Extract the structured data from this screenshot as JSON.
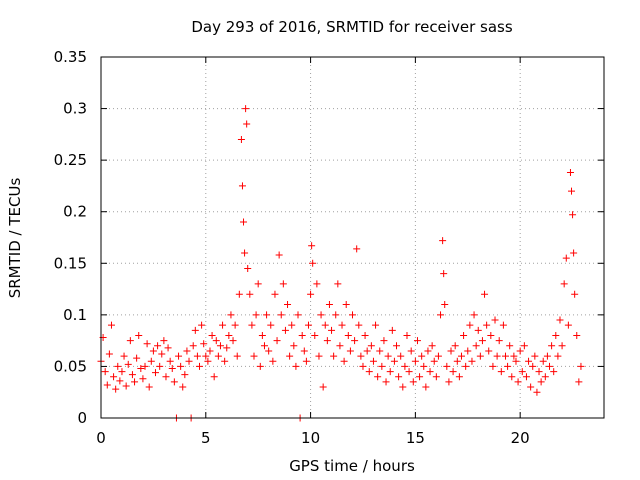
{
  "chart_data": {
    "type": "scatter",
    "title": "Day 293 of 2016, SRMTID for receiver sass",
    "xlabel": "GPS time / hours",
    "ylabel": "SRMTID / TECUs",
    "xlim": [
      0,
      24
    ],
    "ylim": [
      0,
      0.35
    ],
    "xticks": [
      0,
      5,
      10,
      15,
      20
    ],
    "xtick_labels": [
      "0",
      "5",
      "10",
      "15",
      "20"
    ],
    "yticks": [
      0,
      0.05,
      0.1,
      0.15,
      0.2,
      0.25,
      0.3,
      0.35
    ],
    "ytick_labels": [
      "0",
      "0.05",
      "0.1",
      "0.15",
      "0.2",
      "0.25",
      "0.3",
      "0.35"
    ],
    "grid": true,
    "marker": "+",
    "series": [
      {
        "name": "SRMTID",
        "color": "#ff0000",
        "points": [
          [
            0.0,
            0.055
          ],
          [
            0.1,
            0.078
          ],
          [
            0.2,
            0.045
          ],
          [
            0.3,
            0.032
          ],
          [
            0.4,
            0.062
          ],
          [
            0.5,
            0.09
          ],
          [
            0.6,
            0.04
          ],
          [
            0.7,
            0.028
          ],
          [
            0.8,
            0.05
          ],
          [
            0.9,
            0.036
          ],
          [
            1.0,
            0.045
          ],
          [
            1.1,
            0.06
          ],
          [
            1.2,
            0.031
          ],
          [
            1.3,
            0.052
          ],
          [
            1.4,
            0.075
          ],
          [
            1.5,
            0.042
          ],
          [
            1.6,
            0.035
          ],
          [
            1.7,
            0.058
          ],
          [
            1.8,
            0.08
          ],
          [
            1.9,
            0.048
          ],
          [
            2.0,
            0.038
          ],
          [
            2.1,
            0.05
          ],
          [
            2.2,
            0.072
          ],
          [
            2.3,
            0.03
          ],
          [
            2.4,
            0.055
          ],
          [
            2.5,
            0.065
          ],
          [
            2.6,
            0.044
          ],
          [
            2.7,
            0.07
          ],
          [
            2.8,
            0.05
          ],
          [
            2.9,
            0.062
          ],
          [
            3.0,
            0.075
          ],
          [
            3.1,
            0.04
          ],
          [
            3.2,
            0.068
          ],
          [
            3.3,
            0.055
          ],
          [
            3.4,
            0.048
          ],
          [
            3.5,
            0.035
          ],
          [
            3.6,
            0.0
          ],
          [
            3.7,
            0.06
          ],
          [
            3.8,
            0.05
          ],
          [
            3.9,
            0.03
          ],
          [
            4.0,
            0.042
          ],
          [
            4.1,
            0.065
          ],
          [
            4.2,
            0.055
          ],
          [
            4.3,
            0.0
          ],
          [
            4.4,
            0.07
          ],
          [
            4.5,
            0.085
          ],
          [
            4.6,
            0.06
          ],
          [
            4.7,
            0.05
          ],
          [
            4.8,
            0.09
          ],
          [
            4.9,
            0.072
          ],
          [
            5.0,
            0.06
          ],
          [
            5.1,
            0.055
          ],
          [
            5.2,
            0.065
          ],
          [
            5.3,
            0.08
          ],
          [
            5.4,
            0.04
          ],
          [
            5.5,
            0.075
          ],
          [
            5.6,
            0.06
          ],
          [
            5.7,
            0.07
          ],
          [
            5.8,
            0.09
          ],
          [
            5.9,
            0.055
          ],
          [
            6.0,
            0.068
          ],
          [
            6.1,
            0.08
          ],
          [
            6.2,
            0.1
          ],
          [
            6.3,
            0.075
          ],
          [
            6.4,
            0.09
          ],
          [
            6.5,
            0.06
          ],
          [
            6.6,
            0.12
          ],
          [
            6.7,
            0.27
          ],
          [
            6.75,
            0.225
          ],
          [
            6.8,
            0.19
          ],
          [
            6.85,
            0.16
          ],
          [
            6.9,
            0.3
          ],
          [
            6.95,
            0.285
          ],
          [
            7.0,
            0.145
          ],
          [
            7.1,
            0.12
          ],
          [
            7.2,
            0.09
          ],
          [
            7.3,
            0.06
          ],
          [
            7.4,
            0.1
          ],
          [
            7.5,
            0.13
          ],
          [
            7.6,
            0.05
          ],
          [
            7.7,
            0.08
          ],
          [
            7.8,
            0.07
          ],
          [
            7.9,
            0.1
          ],
          [
            8.0,
            0.065
          ],
          [
            8.1,
            0.09
          ],
          [
            8.2,
            0.055
          ],
          [
            8.3,
            0.12
          ],
          [
            8.4,
            0.075
          ],
          [
            8.5,
            0.158
          ],
          [
            8.6,
            0.1
          ],
          [
            8.7,
            0.13
          ],
          [
            8.8,
            0.085
          ],
          [
            8.9,
            0.11
          ],
          [
            9.0,
            0.06
          ],
          [
            9.1,
            0.09
          ],
          [
            9.2,
            0.07
          ],
          [
            9.3,
            0.05
          ],
          [
            9.4,
            0.1
          ],
          [
            9.5,
            0.0
          ],
          [
            9.6,
            0.08
          ],
          [
            9.7,
            0.065
          ],
          [
            9.8,
            0.055
          ],
          [
            9.9,
            0.09
          ],
          [
            10.0,
            0.12
          ],
          [
            10.05,
            0.167
          ],
          [
            10.1,
            0.15
          ],
          [
            10.2,
            0.08
          ],
          [
            10.3,
            0.13
          ],
          [
            10.4,
            0.06
          ],
          [
            10.5,
            0.1
          ],
          [
            10.6,
            0.03
          ],
          [
            10.7,
            0.09
          ],
          [
            10.8,
            0.075
          ],
          [
            10.9,
            0.11
          ],
          [
            11.0,
            0.085
          ],
          [
            11.1,
            0.06
          ],
          [
            11.2,
            0.1
          ],
          [
            11.3,
            0.13
          ],
          [
            11.4,
            0.07
          ],
          [
            11.5,
            0.09
          ],
          [
            11.6,
            0.055
          ],
          [
            11.7,
            0.11
          ],
          [
            11.8,
            0.08
          ],
          [
            11.9,
            0.065
          ],
          [
            12.0,
            0.1
          ],
          [
            12.1,
            0.075
          ],
          [
            12.2,
            0.164
          ],
          [
            12.3,
            0.09
          ],
          [
            12.4,
            0.06
          ],
          [
            12.5,
            0.05
          ],
          [
            12.6,
            0.08
          ],
          [
            12.7,
            0.065
          ],
          [
            12.8,
            0.045
          ],
          [
            12.9,
            0.07
          ],
          [
            13.0,
            0.055
          ],
          [
            13.1,
            0.09
          ],
          [
            13.2,
            0.04
          ],
          [
            13.3,
            0.065
          ],
          [
            13.4,
            0.05
          ],
          [
            13.5,
            0.075
          ],
          [
            13.6,
            0.035
          ],
          [
            13.7,
            0.06
          ],
          [
            13.8,
            0.045
          ],
          [
            13.9,
            0.085
          ],
          [
            14.0,
            0.055
          ],
          [
            14.1,
            0.07
          ],
          [
            14.2,
            0.04
          ],
          [
            14.3,
            0.06
          ],
          [
            14.4,
            0.03
          ],
          [
            14.5,
            0.05
          ],
          [
            14.6,
            0.08
          ],
          [
            14.7,
            0.045
          ],
          [
            14.8,
            0.065
          ],
          [
            14.9,
            0.035
          ],
          [
            15.0,
            0.055
          ],
          [
            15.1,
            0.075
          ],
          [
            15.2,
            0.04
          ],
          [
            15.3,
            0.06
          ],
          [
            15.4,
            0.05
          ],
          [
            15.5,
            0.03
          ],
          [
            15.6,
            0.065
          ],
          [
            15.7,
            0.045
          ],
          [
            15.8,
            0.07
          ],
          [
            15.9,
            0.055
          ],
          [
            16.0,
            0.04
          ],
          [
            16.1,
            0.06
          ],
          [
            16.2,
            0.1
          ],
          [
            16.3,
            0.172
          ],
          [
            16.35,
            0.14
          ],
          [
            16.4,
            0.11
          ],
          [
            16.5,
            0.05
          ],
          [
            16.6,
            0.035
          ],
          [
            16.7,
            0.065
          ],
          [
            16.8,
            0.045
          ],
          [
            16.9,
            0.07
          ],
          [
            17.0,
            0.055
          ],
          [
            17.1,
            0.04
          ],
          [
            17.2,
            0.06
          ],
          [
            17.3,
            0.08
          ],
          [
            17.4,
            0.05
          ],
          [
            17.5,
            0.065
          ],
          [
            17.6,
            0.09
          ],
          [
            17.7,
            0.055
          ],
          [
            17.8,
            0.1
          ],
          [
            17.9,
            0.07
          ],
          [
            18.0,
            0.085
          ],
          [
            18.1,
            0.06
          ],
          [
            18.2,
            0.075
          ],
          [
            18.3,
            0.12
          ],
          [
            18.4,
            0.09
          ],
          [
            18.5,
            0.065
          ],
          [
            18.6,
            0.08
          ],
          [
            18.7,
            0.05
          ],
          [
            18.8,
            0.095
          ],
          [
            18.9,
            0.06
          ],
          [
            19.0,
            0.075
          ],
          [
            19.1,
            0.045
          ],
          [
            19.2,
            0.09
          ],
          [
            19.3,
            0.06
          ],
          [
            19.4,
            0.05
          ],
          [
            19.5,
            0.07
          ],
          [
            19.6,
            0.04
          ],
          [
            19.7,
            0.06
          ],
          [
            19.8,
            0.055
          ],
          [
            19.9,
            0.035
          ],
          [
            20.0,
            0.065
          ],
          [
            20.1,
            0.045
          ],
          [
            20.2,
            0.07
          ],
          [
            20.3,
            0.04
          ],
          [
            20.4,
            0.055
          ],
          [
            20.5,
            0.03
          ],
          [
            20.6,
            0.05
          ],
          [
            20.7,
            0.06
          ],
          [
            20.8,
            0.025
          ],
          [
            20.9,
            0.045
          ],
          [
            21.0,
            0.035
          ],
          [
            21.1,
            0.055
          ],
          [
            21.2,
            0.04
          ],
          [
            21.3,
            0.06
          ],
          [
            21.4,
            0.05
          ],
          [
            21.5,
            0.07
          ],
          [
            21.6,
            0.045
          ],
          [
            21.7,
            0.08
          ],
          [
            21.8,
            0.06
          ],
          [
            21.9,
            0.095
          ],
          [
            22.0,
            0.07
          ],
          [
            22.1,
            0.13
          ],
          [
            22.2,
            0.155
          ],
          [
            22.3,
            0.09
          ],
          [
            22.4,
            0.238
          ],
          [
            22.45,
            0.22
          ],
          [
            22.5,
            0.197
          ],
          [
            22.55,
            0.16
          ],
          [
            22.6,
            0.12
          ],
          [
            22.7,
            0.08
          ],
          [
            22.8,
            0.035
          ],
          [
            22.9,
            0.05
          ]
        ]
      }
    ]
  }
}
